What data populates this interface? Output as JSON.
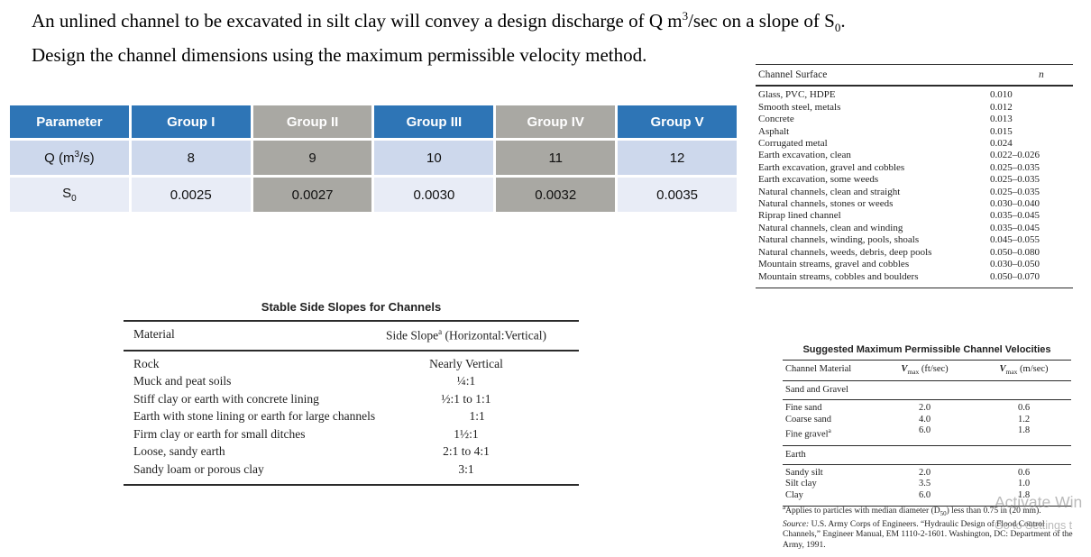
{
  "problem": {
    "line1_part1": "An unlined channel to be excavated in silt clay will convey a design discharge of Q m",
    "line1_sup": "3",
    "line1_part2": "/sec on a slope of S",
    "line1_sub": "0",
    "line1_part3": ".",
    "line2": "Design the channel dimensions using the maximum permissible velocity method."
  },
  "param_table": {
    "headers": [
      "Parameter",
      "Group I",
      "Group II",
      "Group III",
      "Group IV",
      "Group V"
    ],
    "gray_columns": [
      2,
      4
    ],
    "colors": {
      "header_blue": "#2e75b6",
      "gray": "#a9a8a3",
      "row1_light": "#cdd8ec",
      "row2_light": "#e8ecf6"
    },
    "rows": [
      {
        "label_base": "Q (m",
        "label_sup": "3",
        "label_sub": "",
        "label_post": "/s)",
        "values": [
          "8",
          "9",
          "10",
          "11",
          "12"
        ]
      },
      {
        "label_base": "S",
        "label_sup": "",
        "label_sub": "0",
        "label_post": "",
        "values": [
          "0.0025",
          "0.0027",
          "0.0030",
          "0.0032",
          "0.0035"
        ]
      }
    ]
  },
  "surface_table": {
    "title": "Channel Surface",
    "col_header": "n",
    "rows": [
      {
        "label": "Glass, PVC, HDPE",
        "value": "0.010"
      },
      {
        "label": "Smooth steel, metals",
        "value": "0.012"
      },
      {
        "label": "Concrete",
        "value": "0.013"
      },
      {
        "label": "Asphalt",
        "value": "0.015"
      },
      {
        "label": "Corrugated metal",
        "value": "0.024"
      },
      {
        "label": "Earth excavation, clean",
        "value": "0.022–0.026"
      },
      {
        "label": "Earth excavation, gravel and cobbles",
        "value": "0.025–0.035"
      },
      {
        "label": "Earth excavation, some weeds",
        "value": "0.025–0.035"
      },
      {
        "label": "Natural channels, clean and straight",
        "value": "0.025–0.035"
      },
      {
        "label": "Natural channels, stones or weeds",
        "value": "0.030–0.040"
      },
      {
        "label": "Riprap lined channel",
        "value": "0.035–0.045"
      },
      {
        "label": "Natural channels, clean and winding",
        "value": "0.035–0.045"
      },
      {
        "label": "Natural channels, winding, pools, shoals",
        "value": "0.045–0.055"
      },
      {
        "label": "Natural channels, weeds, debris, deep pools",
        "value": "0.050–0.080"
      },
      {
        "label": "Mountain streams, gravel and cobbles",
        "value": "0.030–0.050"
      },
      {
        "label": "Mountain streams, cobbles and boulders",
        "value": "0.050–0.070"
      }
    ]
  },
  "slopes_table": {
    "title": "Stable Side Slopes for Channels",
    "col1_header": "Material",
    "col2_header_base": "Side Slope",
    "col2_header_sup": "a",
    "col2_header_post": " (Horizontal:Vertical)",
    "rows": [
      {
        "material": "Rock",
        "slope": "Nearly Vertical"
      },
      {
        "material": "Muck and peat soils",
        "slope": "¼:1"
      },
      {
        "material": "Stiff clay or earth with concrete lining",
        "slope": "½:1 to 1:1"
      },
      {
        "material": "Earth with stone lining or earth for large channels",
        "slope": "1:1"
      },
      {
        "material": "Firm clay or earth for small ditches",
        "slope": "1½:1"
      },
      {
        "material": "Loose, sandy earth",
        "slope": "2:1 to 4:1"
      },
      {
        "material": "Sandy loam or porous clay",
        "slope": "3:1"
      }
    ]
  },
  "velocity_table": {
    "title": "Suggested Maximum Permissible Channel Velocities",
    "col1_header": "Channel Material",
    "col2": {
      "sym": "V",
      "sub": "max",
      "unit": " (ft/sec)"
    },
    "col3": {
      "sym": "V",
      "sub": "max",
      "unit": " (m/sec)"
    },
    "sections": [
      {
        "name": "Sand and Gravel",
        "rows": [
          {
            "material": "Fine sand",
            "sup": "",
            "vft": "2.0",
            "vms": "0.6"
          },
          {
            "material": "Coarse sand",
            "sup": "",
            "vft": "4.0",
            "vms": "1.2"
          },
          {
            "material": "Fine gravel",
            "sup": "a",
            "vft": "6.0",
            "vms": "1.8"
          }
        ]
      },
      {
        "name": "Earth",
        "rows": [
          {
            "material": "Sandy silt",
            "sup": "",
            "vft": "2.0",
            "vms": "0.6"
          },
          {
            "material": "Silt clay",
            "sup": "",
            "vft": "3.5",
            "vms": "1.0"
          },
          {
            "material": "Clay",
            "sup": "",
            "vft": "6.0",
            "vms": "1.8"
          }
        ]
      }
    ],
    "footnote": {
      "sup": "a",
      "l1a": "Applies to particles with median diameter (D",
      "l1_sub": "50",
      "l1b": ") less than 0.75 in (20 mm).",
      "source_label": "Source:",
      "source_text": " U.S. Army Corps of Engineers. “Hydraulic Design of Flood Control Channels,” Engineer Manual, EM 1110-2-1601. Washington, DC: Department of the Army, 1991."
    }
  },
  "watermark": {
    "line1": "Activate Win",
    "line2": "Go to Settings t"
  }
}
